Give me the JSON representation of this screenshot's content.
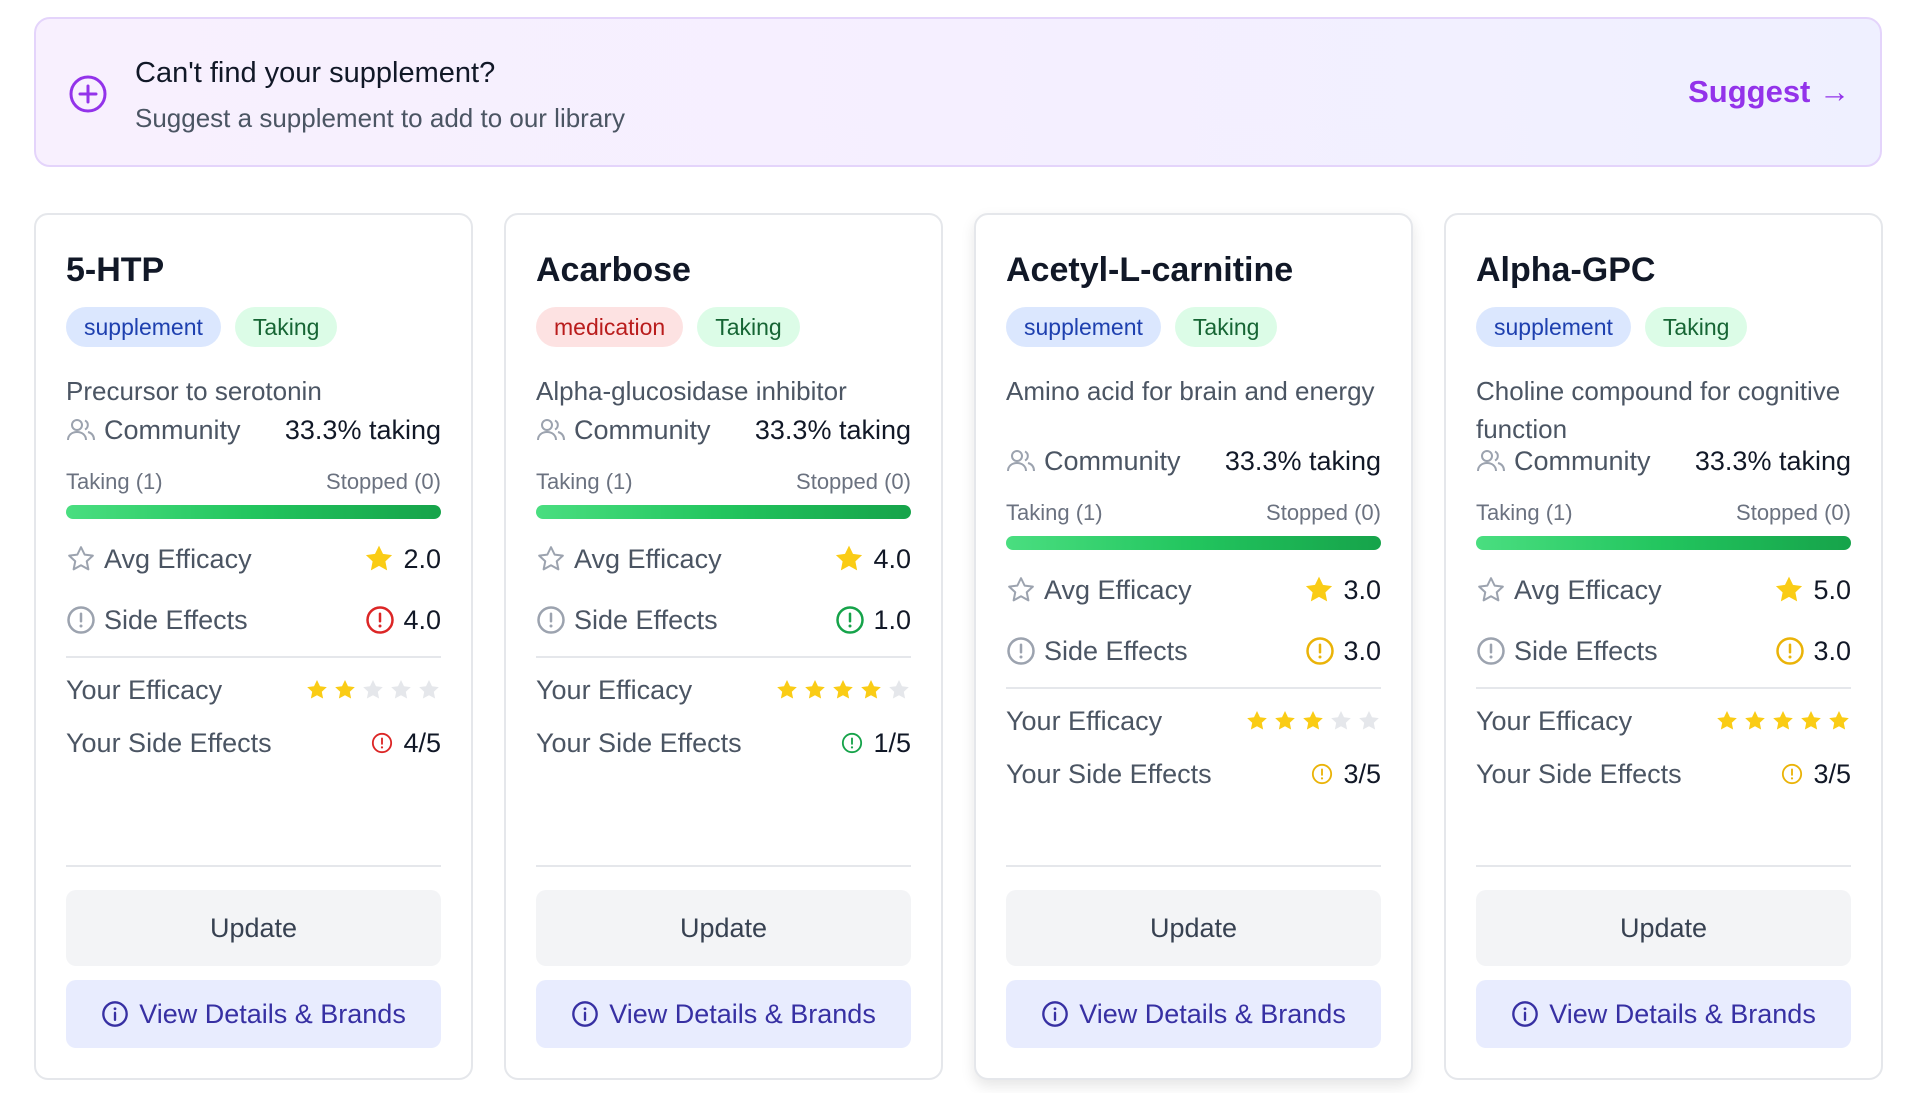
{
  "banner": {
    "title": "Can't find your supplement?",
    "subtitle": "Suggest a supplement to add to our library",
    "link": "Suggest →"
  },
  "labels": {
    "community": "Community",
    "avg_efficacy": "Avg Efficacy",
    "side_effects": "Side Effects",
    "your_efficacy": "Your Efficacy",
    "your_side_effects": "Your Side Effects",
    "update": "Update",
    "view_details": "View Details & Brands"
  },
  "colors": {
    "accent": "#9333ea",
    "star": "#facc15",
    "star_empty": "#e5e7eb",
    "red": "#dc2626",
    "green": "#16a34a",
    "amber": "#eab308"
  },
  "cards": [
    {
      "name": "5-HTP",
      "type": "supplement",
      "status": "Taking",
      "description": "Precursor to serotonin",
      "community": "33.3% taking",
      "taking": "Taking (1)",
      "stopped": "Stopped (0)",
      "taking_fraction": 1.0,
      "avg_efficacy": "2.0",
      "side_effects": "4.0",
      "side_effects_level": "red",
      "your_efficacy_stars": 2,
      "your_side_effects": "4/5",
      "your_side_effects_level": "red"
    },
    {
      "name": "Acarbose",
      "type": "medication",
      "status": "Taking",
      "description": "Alpha-glucosidase inhibitor",
      "community": "33.3% taking",
      "taking": "Taking (1)",
      "stopped": "Stopped (0)",
      "taking_fraction": 1.0,
      "avg_efficacy": "4.0",
      "side_effects": "1.0",
      "side_effects_level": "green",
      "your_efficacy_stars": 4,
      "your_side_effects": "1/5",
      "your_side_effects_level": "green"
    },
    {
      "name": "Acetyl-L-carnitine",
      "type": "supplement",
      "status": "Taking",
      "description": "Amino acid for brain and energy",
      "community": "33.3% taking",
      "taking": "Taking (1)",
      "stopped": "Stopped (0)",
      "taking_fraction": 1.0,
      "avg_efficacy": "3.0",
      "side_effects": "3.0",
      "side_effects_level": "amber",
      "your_efficacy_stars": 3,
      "your_side_effects": "3/5",
      "your_side_effects_level": "amber"
    },
    {
      "name": "Alpha-GPC",
      "type": "supplement",
      "status": "Taking",
      "description": "Choline compound for cognitive function",
      "community": "33.3% taking",
      "taking": "Taking (1)",
      "stopped": "Stopped (0)",
      "taking_fraction": 1.0,
      "avg_efficacy": "5.0",
      "side_effects": "3.0",
      "side_effects_level": "amber",
      "your_efficacy_stars": 5,
      "your_side_effects": "3/5",
      "your_side_effects_level": "amber"
    }
  ]
}
